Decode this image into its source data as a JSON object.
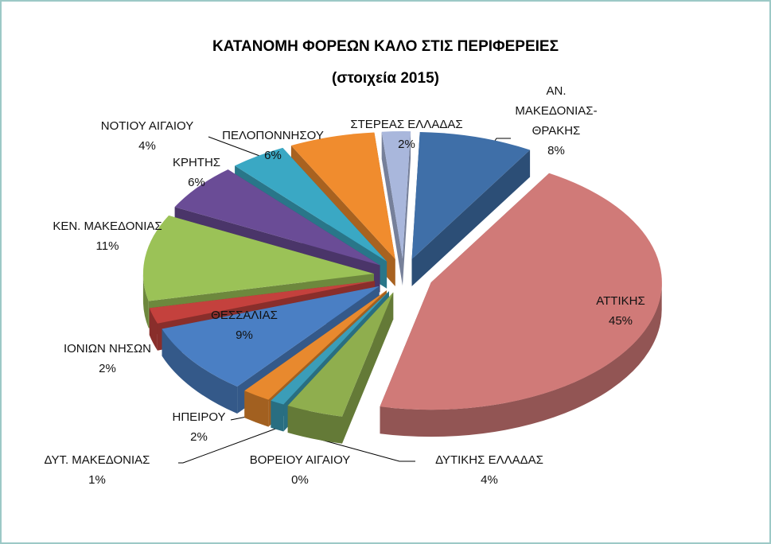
{
  "chart_data": {
    "type": "pie",
    "title": "ΚΑΤΑΝΟΜΗ ΦΟΡΕΩΝ ΚΑΛΟ ΣΤΙΣ ΠΕΡΙΦΕΡΕΙΕΣ",
    "subtitle": "(στοιχεία 2015)",
    "categories": [
      "ΑΝ. ΜΑΚΕΔΟΝΙΑΣ-ΘΡΑΚΗΣ",
      "ΑΤΤΙΚΗΣ",
      "ΔΥΤΙΚΗΣ ΕΛΛΑΔΑΣ",
      "ΒΟΡΕΙΟΥ ΑΙΓΑΙΟΥ",
      "ΔΥΤ. ΜΑΚΕΔΟΝΙΑΣ",
      "ΗΠΕΙΡΟΥ",
      "ΘΕΣΣΑΛΙΑΣ",
      "ΙΟΝΙΩΝ ΝΗΣΩΝ",
      "ΚΕΝ. ΜΑΚΕΔΟΝΙΑΣ",
      "ΚΡΗΤΗΣ",
      "ΝΟΤΙΟΥ ΑΙΓΑΙΟΥ",
      "ΠΕΛΟΠΟΝΝΗΣΟΥ",
      "ΣΤΕΡΕΑΣ ΕΛΛΑΔΑΣ"
    ],
    "values": [
      8,
      45,
      4,
      0,
      1,
      2,
      9,
      2,
      11,
      6,
      4,
      6,
      2
    ],
    "value_labels": [
      "8%",
      "45%",
      "4%",
      "0%",
      "1%",
      "2%",
      "9%",
      "2%",
      "11%",
      "6%",
      "4%",
      "6%",
      "2%"
    ],
    "colors": [
      "#3f6fa8",
      "#d07a78",
      "#8fae4e",
      "#6d4f92",
      "#3b9db8",
      "#e8892e",
      "#4a7fc4",
      "#c4413d",
      "#9bc257",
      "#6a4c96",
      "#3aa8c4",
      "#f08c2e",
      "#a9b7dc"
    ]
  }
}
